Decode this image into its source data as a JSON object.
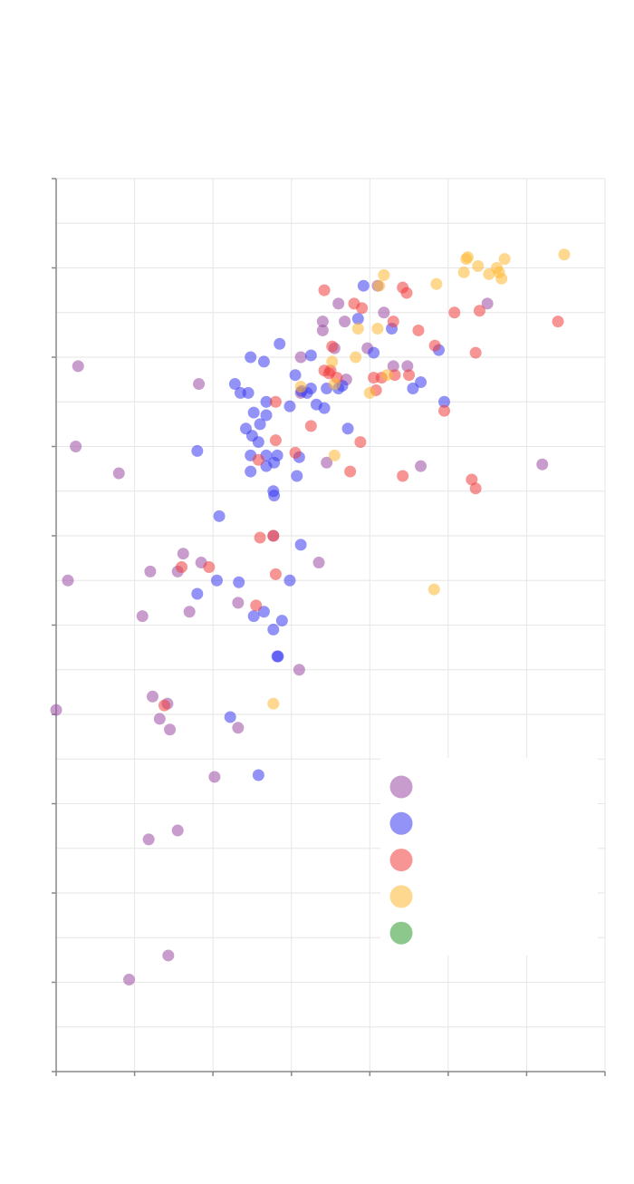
{
  "chart_data": {
    "type": "scatter",
    "title": "",
    "xlabel": "",
    "ylabel": "",
    "xlim": [
      0,
      7
    ],
    "ylim": [
      0,
      10
    ],
    "grid": true,
    "legend": "bottom-right",
    "series": [
      {
        "color": "#9b4da4",
        "points": [
          [
            0.28,
            7.9
          ],
          [
            1.82,
            7.7
          ],
          [
            0.25,
            7.0
          ],
          [
            0.8,
            6.7
          ],
          [
            0.15,
            5.5
          ],
          [
            1.2,
            5.6
          ],
          [
            1.55,
            5.6
          ],
          [
            1.62,
            5.8
          ],
          [
            1.85,
            5.7
          ],
          [
            1.1,
            5.1
          ],
          [
            1.7,
            5.15
          ],
          [
            2.32,
            5.25
          ],
          [
            3.35,
            5.7
          ],
          [
            2.77,
            6.0
          ],
          [
            3.1,
            4.5
          ],
          [
            0.0,
            4.05
          ],
          [
            1.23,
            4.2
          ],
          [
            1.42,
            4.12
          ],
          [
            1.32,
            3.95
          ],
          [
            1.45,
            3.83
          ],
          [
            2.02,
            3.3
          ],
          [
            2.32,
            3.85
          ],
          [
            1.55,
            2.7
          ],
          [
            1.18,
            2.6
          ],
          [
            1.43,
            1.3
          ],
          [
            0.93,
            1.03
          ],
          [
            3.12,
            8.0
          ],
          [
            3.4,
            8.4
          ],
          [
            3.4,
            8.3
          ],
          [
            3.6,
            8.6
          ],
          [
            3.68,
            8.4
          ],
          [
            3.55,
            8.1
          ],
          [
            3.7,
            7.75
          ],
          [
            3.97,
            8.1
          ],
          [
            4.1,
            8.8
          ],
          [
            4.18,
            8.5
          ],
          [
            4.3,
            7.9
          ],
          [
            4.48,
            7.9
          ],
          [
            5.5,
            8.6
          ],
          [
            4.65,
            6.78
          ],
          [
            3.45,
            6.82
          ],
          [
            6.2,
            6.8
          ],
          [
            3.12,
            7.6
          ]
        ]
      },
      {
        "color": "#3b3bf0",
        "points": [
          [
            2.48,
            8.0
          ],
          [
            2.65,
            7.95
          ],
          [
            2.85,
            8.15
          ],
          [
            2.78,
            6.82
          ],
          [
            3.05,
            7.8
          ],
          [
            3.25,
            8.02
          ],
          [
            2.28,
            7.7
          ],
          [
            2.35,
            7.6
          ],
          [
            2.45,
            7.6
          ],
          [
            2.68,
            7.5
          ],
          [
            2.52,
            7.38
          ],
          [
            2.68,
            7.35
          ],
          [
            2.6,
            7.25
          ],
          [
            2.42,
            7.2
          ],
          [
            2.5,
            7.12
          ],
          [
            2.58,
            7.05
          ],
          [
            2.68,
            6.9
          ],
          [
            2.48,
            6.9
          ],
          [
            2.48,
            6.72
          ],
          [
            2.68,
            6.78
          ],
          [
            2.82,
            6.9
          ],
          [
            3.1,
            6.88
          ],
          [
            3.07,
            6.67
          ],
          [
            2.77,
            6.5
          ],
          [
            2.78,
            6.45
          ],
          [
            1.8,
            6.95
          ],
          [
            2.08,
            6.22
          ],
          [
            2.98,
            7.45
          ],
          [
            3.2,
            7.6
          ],
          [
            3.13,
            7.62
          ],
          [
            3.25,
            7.65
          ],
          [
            3.32,
            7.47
          ],
          [
            3.42,
            7.43
          ],
          [
            3.45,
            7.65
          ],
          [
            3.6,
            7.65
          ],
          [
            3.65,
            7.68
          ],
          [
            3.72,
            7.2
          ],
          [
            3.92,
            8.8
          ],
          [
            3.85,
            8.43
          ],
          [
            4.05,
            8.05
          ],
          [
            4.28,
            8.32
          ],
          [
            4.55,
            7.65
          ],
          [
            4.65,
            7.72
          ],
          [
            4.88,
            8.08
          ],
          [
            4.95,
            7.5
          ],
          [
            3.12,
            5.9
          ],
          [
            2.05,
            5.5
          ],
          [
            2.33,
            5.48
          ],
          [
            2.98,
            5.5
          ],
          [
            1.8,
            5.35
          ],
          [
            2.52,
            5.1
          ],
          [
            2.65,
            5.15
          ],
          [
            2.88,
            5.05
          ],
          [
            2.77,
            4.95
          ],
          [
            2.83,
            4.65
          ],
          [
            2.82,
            4.65
          ],
          [
            2.22,
            3.97
          ],
          [
            2.58,
            3.32
          ]
        ]
      },
      {
        "color": "#f03c3c",
        "points": [
          [
            3.42,
            8.75
          ],
          [
            3.8,
            8.6
          ],
          [
            3.9,
            8.55
          ],
          [
            4.3,
            8.4
          ],
          [
            4.42,
            8.78
          ],
          [
            4.47,
            8.72
          ],
          [
            4.62,
            8.3
          ],
          [
            4.83,
            8.13
          ],
          [
            5.08,
            8.5
          ],
          [
            5.4,
            8.52
          ],
          [
            6.4,
            8.4
          ],
          [
            5.35,
            8.05
          ],
          [
            3.52,
            8.12
          ],
          [
            3.42,
            7.85
          ],
          [
            3.48,
            7.82
          ],
          [
            3.58,
            7.77
          ],
          [
            3.5,
            7.85
          ],
          [
            4.05,
            7.77
          ],
          [
            4.15,
            7.77
          ],
          [
            4.32,
            7.8
          ],
          [
            4.5,
            7.8
          ],
          [
            4.08,
            7.63
          ],
          [
            4.95,
            7.4
          ],
          [
            2.8,
            7.5
          ],
          [
            3.25,
            7.23
          ],
          [
            2.8,
            7.07
          ],
          [
            3.05,
            6.93
          ],
          [
            2.58,
            6.85
          ],
          [
            3.88,
            7.05
          ],
          [
            3.75,
            6.72
          ],
          [
            4.42,
            6.67
          ],
          [
            5.3,
            6.63
          ],
          [
            5.35,
            6.53
          ],
          [
            2.77,
            6.0
          ],
          [
            2.6,
            5.98
          ],
          [
            2.8,
            5.57
          ],
          [
            1.95,
            5.65
          ],
          [
            1.6,
            5.65
          ],
          [
            2.55,
            5.22
          ],
          [
            1.38,
            4.1
          ]
        ]
      },
      {
        "color": "#ffb833",
        "points": [
          [
            5.25,
            9.12
          ],
          [
            5.23,
            9.1
          ],
          [
            5.38,
            9.02
          ],
          [
            5.52,
            8.93
          ],
          [
            5.62,
            9.0
          ],
          [
            5.65,
            8.95
          ],
          [
            5.72,
            9.1
          ],
          [
            5.68,
            8.88
          ],
          [
            5.2,
            8.95
          ],
          [
            6.48,
            9.15
          ],
          [
            4.18,
            8.92
          ],
          [
            4.12,
            8.8
          ],
          [
            4.85,
            8.82
          ],
          [
            3.85,
            8.32
          ],
          [
            4.1,
            8.32
          ],
          [
            3.52,
            7.95
          ],
          [
            3.82,
            8.0
          ],
          [
            4.22,
            7.8
          ],
          [
            3.12,
            7.67
          ],
          [
            3.55,
            7.7
          ],
          [
            4.0,
            7.6
          ],
          [
            3.55,
            6.9
          ],
          [
            4.82,
            5.4
          ],
          [
            2.77,
            4.12
          ]
        ]
      },
      {
        "color": "#2e9a2e",
        "points": []
      }
    ]
  }
}
